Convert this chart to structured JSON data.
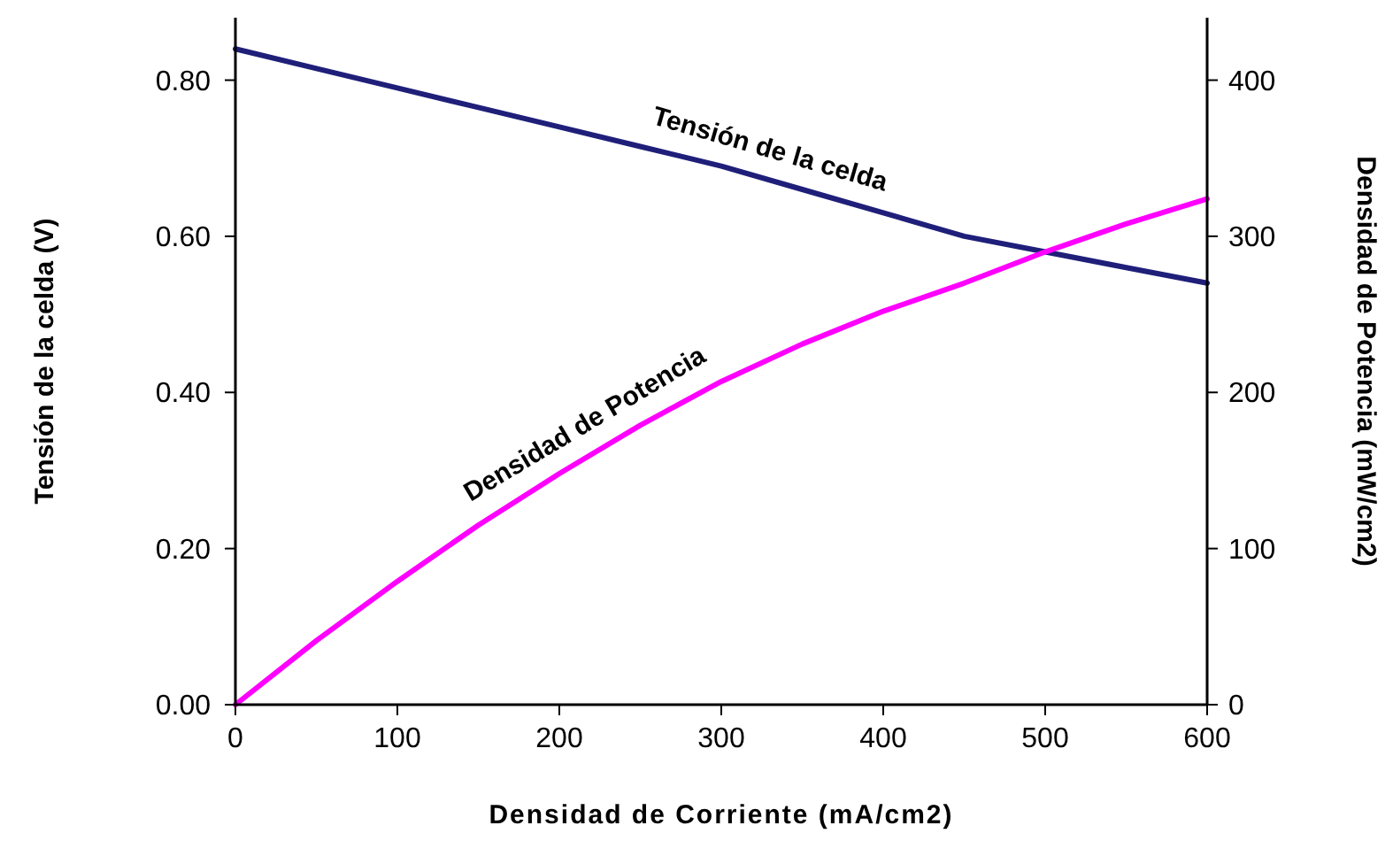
{
  "chart_data": {
    "type": "line",
    "xlabel": "Densidad de Corriente (mA/cm2)",
    "ylabel": "Tensión de la celda (V)",
    "y2label": "Densidad de Potencia (mW/cm2)",
    "x": [
      0,
      50,
      100,
      150,
      200,
      250,
      300,
      350,
      400,
      450,
      500,
      550,
      600
    ],
    "series": [
      {
        "name": "Tensión de la celda",
        "color": "#1f1f7a",
        "values": [
          0.84,
          0.815,
          0.79,
          0.765,
          0.74,
          0.715,
          0.69,
          0.66,
          0.63,
          0.6,
          0.58,
          0.56,
          0.54
        ]
      },
      {
        "name": "Densidad de Potencia",
        "color": "#ff00ff",
        "axis": "y2",
        "values": [
          0,
          41,
          79,
          115,
          148,
          179,
          207,
          231,
          252,
          270,
          290,
          308,
          324
        ]
      }
    ],
    "xlim": [
      0,
      600
    ],
    "xticks": [
      0,
      100,
      200,
      300,
      400,
      500,
      600
    ],
    "ylim": [
      0,
      0.88
    ],
    "yticks": [
      {
        "value": 0,
        "label": "0.00"
      },
      {
        "value": 0.2,
        "label": "0.20"
      },
      {
        "value": 0.4,
        "label": "0.40"
      },
      {
        "value": 0.6,
        "label": "0.60"
      },
      {
        "value": 0.8,
        "label": "0.80"
      }
    ],
    "y2lim": [
      0,
      440
    ],
    "y2ticks": [
      0,
      100,
      200,
      300,
      400
    ],
    "grid": false,
    "marker": "none",
    "line_style": "solid"
  }
}
